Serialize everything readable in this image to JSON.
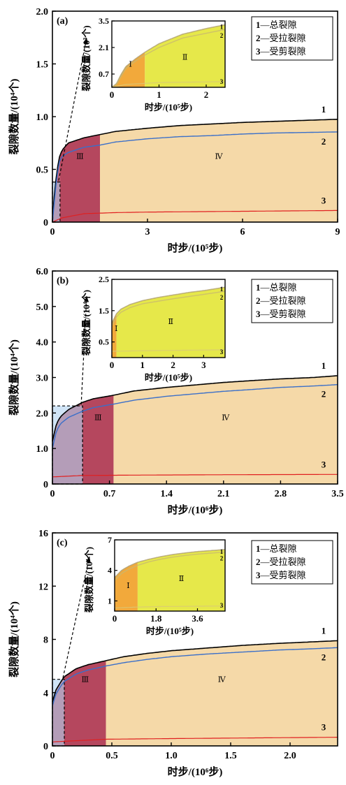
{
  "legend": {
    "items": [
      {
        "num": "1",
        "text": "—总裂隙"
      },
      {
        "num": "2",
        "text": "—受拉裂隙"
      },
      {
        "num": "3",
        "text": "—受剪裂隙"
      }
    ]
  },
  "colors": {
    "total": "#000000",
    "tensile": "#3a6fc9",
    "shear": "#e02020",
    "stage1": "#f2a93b",
    "stage2": "#e6e84a",
    "stage3": "#b5475e",
    "stage4": "#f5d9a8",
    "zoom_box": "#a9cdee"
  },
  "chart_data": [
    {
      "type": "area",
      "panel_label": "(a)",
      "xlabel": "时步/(10⁵步)",
      "ylabel": "裂隙数量/(10⁴个)",
      "xlim": [
        0,
        9
      ],
      "ylim": [
        0,
        2.0
      ],
      "xticks": [
        "0",
        "3",
        "6",
        "9"
      ],
      "yticks": [
        "0",
        "0.5",
        "1.0",
        "1.5",
        "2.0"
      ],
      "stage_labels": [
        "Ⅲ",
        "Ⅳ"
      ],
      "stage_boundaries": [
        0.24,
        1.5
      ],
      "zoom_box": {
        "x": [
          0,
          0.24
        ],
        "y": [
          0,
          0.38
        ]
      },
      "curve_labels": [
        "1",
        "2",
        "3"
      ],
      "series": [
        {
          "id": "total",
          "x": [
            0,
            0.05,
            0.1,
            0.2,
            0.3,
            0.5,
            0.8,
            1.0,
            1.5,
            2,
            3,
            4,
            5,
            6,
            7,
            8,
            9
          ],
          "y": [
            0,
            0.22,
            0.38,
            0.6,
            0.68,
            0.75,
            0.78,
            0.8,
            0.83,
            0.86,
            0.89,
            0.915,
            0.93,
            0.945,
            0.955,
            0.965,
            0.975
          ]
        },
        {
          "id": "tensile",
          "x": [
            0,
            0.05,
            0.1,
            0.2,
            0.3,
            0.5,
            0.8,
            1.0,
            1.5,
            2,
            3,
            4,
            5,
            6,
            7,
            8,
            9
          ],
          "y": [
            0,
            0.15,
            0.32,
            0.56,
            0.62,
            0.66,
            0.69,
            0.71,
            0.73,
            0.76,
            0.79,
            0.81,
            0.82,
            0.835,
            0.845,
            0.85,
            0.855
          ]
        },
        {
          "id": "shear",
          "x": [
            0,
            0.3,
            1,
            2,
            3,
            5,
            7,
            9
          ],
          "y": [
            0,
            0.04,
            0.08,
            0.09,
            0.095,
            0.1,
            0.105,
            0.11
          ]
        }
      ],
      "inset": {
        "xlabel": "时步/(10⁵步)",
        "ylabel": "裂隙数量/(10³个)",
        "xlim": [
          0,
          2.4
        ],
        "ylim": [
          0,
          3.5
        ],
        "xticks": [
          {
            "v": 0,
            "t": "0"
          },
          {
            "v": 1,
            "t": "1"
          },
          {
            "v": 2,
            "t": "2"
          }
        ],
        "yticks": [
          {
            "v": 0.7,
            "t": "0.7"
          },
          {
            "v": 2.1,
            "t": "2.1"
          },
          {
            "v": 3.5,
            "t": "3.5"
          }
        ],
        "stage_labels": [
          "Ⅰ",
          "Ⅱ"
        ],
        "stage_boundary": 0.7,
        "curve_labels": [
          "1",
          "2",
          "3"
        ],
        "series": [
          {
            "id": "total",
            "x": [
              0,
              0.1,
              0.2,
              0.3,
              0.5,
              0.7,
              1.0,
              1.5,
              2.0,
              2.4
            ],
            "y": [
              0,
              0.2,
              0.7,
              1.1,
              1.5,
              1.85,
              2.3,
              2.8,
              3.1,
              3.3
            ]
          },
          {
            "id": "tensile",
            "x": [
              0,
              0.1,
              0.2,
              0.3,
              0.5,
              0.7,
              1.0,
              1.5,
              2.0,
              2.4
            ],
            "y": [
              0,
              0.15,
              0.6,
              1.0,
              1.38,
              1.7,
              2.1,
              2.6,
              2.85,
              3.05
            ]
          },
          {
            "id": "shear",
            "x": [
              0,
              0.3,
              1,
              2.4
            ],
            "y": [
              0,
              0.15,
              0.25,
              0.3
            ]
          }
        ]
      }
    },
    {
      "type": "area",
      "panel_label": "(b)",
      "xlabel": "时步/(10⁶步)",
      "ylabel": "裂隙数量/(10⁴个)",
      "xlim": [
        0,
        3.5
      ],
      "ylim": [
        0,
        6.0
      ],
      "xticks": [
        "0",
        "0.7",
        "1.4",
        "2.1",
        "2.8",
        "3.5"
      ],
      "yticks": [
        "0",
        "1.0",
        "2.0",
        "3.0",
        "4.0",
        "5.0",
        "6.0"
      ],
      "stage_labels": [
        "Ⅲ",
        "Ⅳ"
      ],
      "stage_boundaries": [
        0.37,
        0.75
      ],
      "zoom_box": {
        "x": [
          0,
          0.37
        ],
        "y": [
          0,
          2.2
        ]
      },
      "curve_labels": [
        "1",
        "2",
        "3"
      ],
      "series": [
        {
          "id": "total",
          "x": [
            0,
            0.05,
            0.1,
            0.2,
            0.37,
            0.5,
            0.75,
            1.0,
            1.4,
            1.8,
            2.1,
            2.5,
            2.8,
            3.2,
            3.5
          ],
          "y": [
            1.2,
            1.7,
            1.9,
            2.1,
            2.3,
            2.4,
            2.5,
            2.62,
            2.72,
            2.8,
            2.86,
            2.92,
            2.96,
            3.0,
            3.05
          ]
        },
        {
          "id": "tensile",
          "x": [
            0,
            0.05,
            0.1,
            0.2,
            0.37,
            0.5,
            0.75,
            1.0,
            1.4,
            1.8,
            2.1,
            2.5,
            2.8,
            3.2,
            3.5
          ],
          "y": [
            1.0,
            1.5,
            1.7,
            1.88,
            2.05,
            2.15,
            2.25,
            2.36,
            2.47,
            2.55,
            2.61,
            2.67,
            2.72,
            2.76,
            2.8
          ]
        },
        {
          "id": "shear",
          "x": [
            0,
            0.37,
            1,
            2,
            3.5
          ],
          "y": [
            0.2,
            0.24,
            0.25,
            0.26,
            0.27
          ]
        }
      ],
      "inset": {
        "xlabel": "时步/(10⁵步)",
        "ylabel": "裂隙数量/(10⁴个)",
        "xlim": [
          0,
          3.7
        ],
        "ylim": [
          0,
          2.5
        ],
        "xticks": [
          {
            "v": 0,
            "t": "0"
          },
          {
            "v": 1,
            "t": "1"
          },
          {
            "v": 2,
            "t": "2"
          },
          {
            "v": 3,
            "t": "3"
          }
        ],
        "yticks": [
          {
            "v": 0.5,
            "t": "0.5"
          },
          {
            "v": 1.5,
            "t": "1.5"
          },
          {
            "v": 2.5,
            "t": "2.5"
          }
        ],
        "stage_labels": [
          "Ⅰ",
          "Ⅱ"
        ],
        "stage_boundary": 0.15,
        "curve_labels": [
          "1",
          "2",
          "3"
        ],
        "series": [
          {
            "id": "total",
            "x": [
              0,
              0.15,
              0.3,
              0.6,
              1.0,
              1.5,
              2.0,
              2.5,
              3.0,
              3.7
            ],
            "y": [
              1.1,
              1.4,
              1.55,
              1.7,
              1.82,
              1.92,
              2.0,
              2.08,
              2.14,
              2.25
            ]
          },
          {
            "id": "tensile",
            "x": [
              0,
              0.15,
              0.3,
              0.6,
              1.0,
              1.5,
              2.0,
              2.5,
              3.0,
              3.7
            ],
            "y": [
              1.0,
              1.3,
              1.45,
              1.6,
              1.72,
              1.8,
              1.88,
              1.95,
              2.02,
              2.12
            ]
          },
          {
            "id": "shear",
            "x": [
              0,
              1,
              2,
              3.7
            ],
            "y": [
              0.2,
              0.22,
              0.23,
              0.25
            ]
          }
        ]
      }
    },
    {
      "type": "area",
      "panel_label": "(c)",
      "xlabel": "时步/(10⁶步)",
      "ylabel": "裂隙数量/(10⁴个)",
      "xlim": [
        0,
        2.4
      ],
      "ylim": [
        0,
        16
      ],
      "xticks": [
        "0",
        "0.5",
        "1.0",
        "1.5",
        "2.0"
      ],
      "xtick_values": [
        0,
        0.5,
        1.0,
        1.5,
        2.0
      ],
      "yticks": [
        "0",
        "4",
        "8",
        "12",
        "16"
      ],
      "stage_labels": [
        "Ⅲ",
        "Ⅳ"
      ],
      "stage_boundaries": [
        0.1,
        0.45
      ],
      "zoom_box": {
        "x": [
          0,
          0.1
        ],
        "y": [
          0,
          5
        ]
      },
      "curve_labels": [
        "1",
        "2",
        "3"
      ],
      "series": [
        {
          "id": "total",
          "x": [
            0,
            0.03,
            0.07,
            0.1,
            0.2,
            0.3,
            0.45,
            0.6,
            0.8,
            1.0,
            1.3,
            1.6,
            1.9,
            2.2,
            2.4
          ],
          "y": [
            3.3,
            4.2,
            4.8,
            5.2,
            5.8,
            6.1,
            6.4,
            6.7,
            6.95,
            7.15,
            7.35,
            7.55,
            7.7,
            7.82,
            7.9
          ]
        },
        {
          "id": "tensile",
          "x": [
            0,
            0.03,
            0.07,
            0.1,
            0.2,
            0.3,
            0.45,
            0.6,
            0.8,
            1.0,
            1.3,
            1.6,
            1.9,
            2.2,
            2.4
          ],
          "y": [
            3.0,
            3.9,
            4.5,
            4.85,
            5.4,
            5.7,
            6.0,
            6.25,
            6.5,
            6.7,
            6.9,
            7.05,
            7.2,
            7.3,
            7.38
          ]
        },
        {
          "id": "shear",
          "x": [
            0,
            0.45,
            1,
            2.4
          ],
          "y": [
            0.3,
            0.5,
            0.55,
            0.65
          ]
        }
      ],
      "inset": {
        "xlabel": "时步/(10⁵步)",
        "ylabel": "裂隙数量/(10⁴个)",
        "xlim": [
          0,
          4.8
        ],
        "ylim": [
          0,
          7
        ],
        "xticks": [
          {
            "v": 0,
            "t": "0"
          },
          {
            "v": 1.8,
            "t": "1.8"
          },
          {
            "v": 3.6,
            "t": "3.6"
          }
        ],
        "yticks": [
          {
            "v": 1,
            "t": "1"
          },
          {
            "v": 4,
            "t": "4"
          },
          {
            "v": 7,
            "t": "7"
          }
        ],
        "stage_labels": [
          "Ⅰ",
          "Ⅱ"
        ],
        "stage_boundary": 1.0,
        "curve_labels": [
          "1",
          "2",
          "3"
        ],
        "series": [
          {
            "id": "total",
            "x": [
              0,
              0.3,
              0.6,
              1.0,
              1.5,
              2.0,
              2.5,
              3.0,
              3.6,
              4.2,
              4.8
            ],
            "y": [
              3.3,
              4.0,
              4.4,
              4.8,
              5.1,
              5.35,
              5.55,
              5.7,
              5.85,
              5.95,
              6.05
            ]
          },
          {
            "id": "tensile",
            "x": [
              0,
              0.3,
              0.6,
              1.0,
              1.5,
              2.0,
              2.5,
              3.0,
              3.6,
              4.2,
              4.8
            ],
            "y": [
              3.0,
              3.7,
              4.1,
              4.5,
              4.85,
              5.1,
              5.3,
              5.45,
              5.6,
              5.7,
              5.8
            ]
          },
          {
            "id": "shear",
            "x": [
              0,
              1,
              2,
              4.8
            ],
            "y": [
              0.3,
              0.4,
              0.45,
              0.5
            ]
          }
        ]
      }
    }
  ]
}
